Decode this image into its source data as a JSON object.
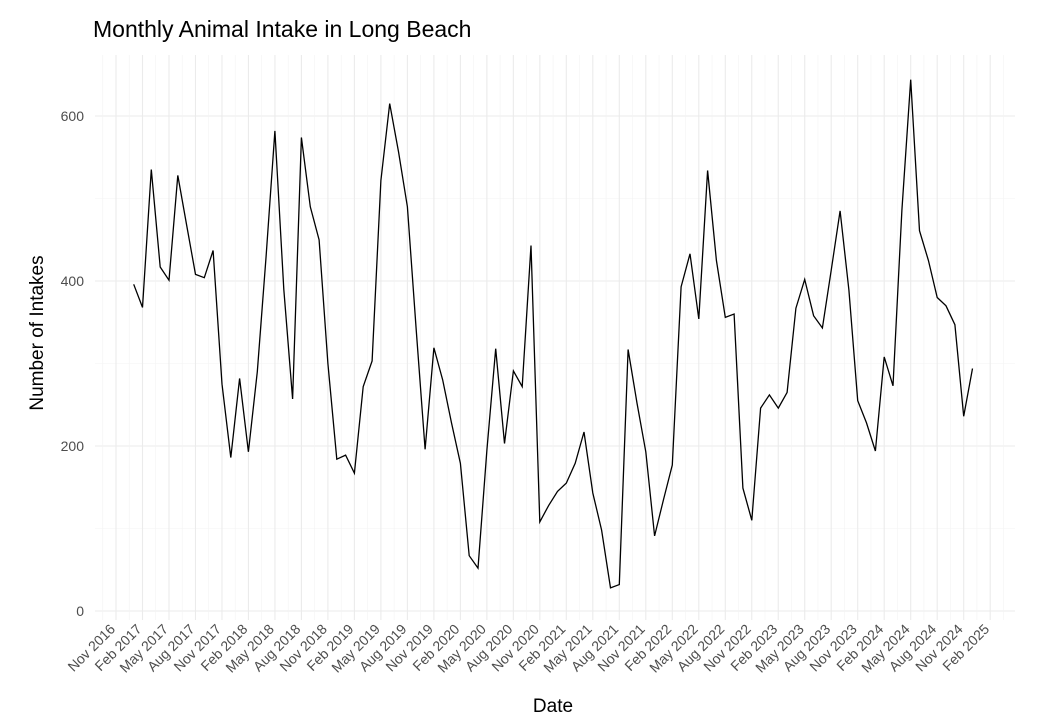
{
  "chart_data": {
    "type": "line",
    "title": "Monthly Animal Intake in Long Beach",
    "xlabel": "Date",
    "ylabel": "Number of Intakes",
    "ylim": [
      0,
      674
    ],
    "yticks": [
      0,
      200,
      400,
      600
    ],
    "grid": true,
    "line_color": "#000000",
    "x_start": "Jan 2017",
    "x_end": "Dec 2024",
    "xtick_labels": [
      "Nov 2016",
      "Feb 2017",
      "May 2017",
      "Aug 2017",
      "Nov 2017",
      "Feb 2018",
      "May 2018",
      "Aug 2018",
      "Nov 2018",
      "Feb 2019",
      "May 2019",
      "Aug 2019",
      "Nov 2019",
      "Feb 2020",
      "May 2020",
      "Aug 2020",
      "Nov 2020",
      "Feb 2021",
      "May 2021",
      "Aug 2021",
      "Nov 2021",
      "Feb 2022",
      "May 2022",
      "Aug 2022",
      "Nov 2022",
      "Feb 2023",
      "May 2023",
      "Aug 2023",
      "Nov 2023",
      "Feb 2024",
      "May 2024",
      "Aug 2024",
      "Nov 2024",
      "Feb 2025"
    ],
    "series": [
      {
        "values": [
          396,
          368,
          535,
          417,
          401,
          528,
          468,
          408,
          404,
          437,
          275,
          186,
          282,
          193,
          290,
          430,
          582,
          390,
          257,
          574,
          490,
          450,
          300,
          184,
          189,
          167,
          272,
          303,
          522,
          615,
          556,
          490,
          341,
          196,
          319,
          280,
          228,
          179,
          67,
          52,
          195,
          318,
          203,
          291,
          272,
          443,
          108,
          128,
          145,
          155,
          179,
          217,
          143,
          98,
          28,
          32,
          317,
          252,
          193,
          91,
          135,
          177,
          393,
          433,
          354,
          534,
          425,
          356,
          360,
          149,
          110,
          246,
          262,
          246,
          265,
          367,
          402,
          358,
          343,
          413,
          485,
          389,
          255,
          228,
          194,
          308,
          273,
          486,
          644,
          461,
          425,
          380,
          370,
          347,
          236,
          294
        ]
      }
    ]
  }
}
